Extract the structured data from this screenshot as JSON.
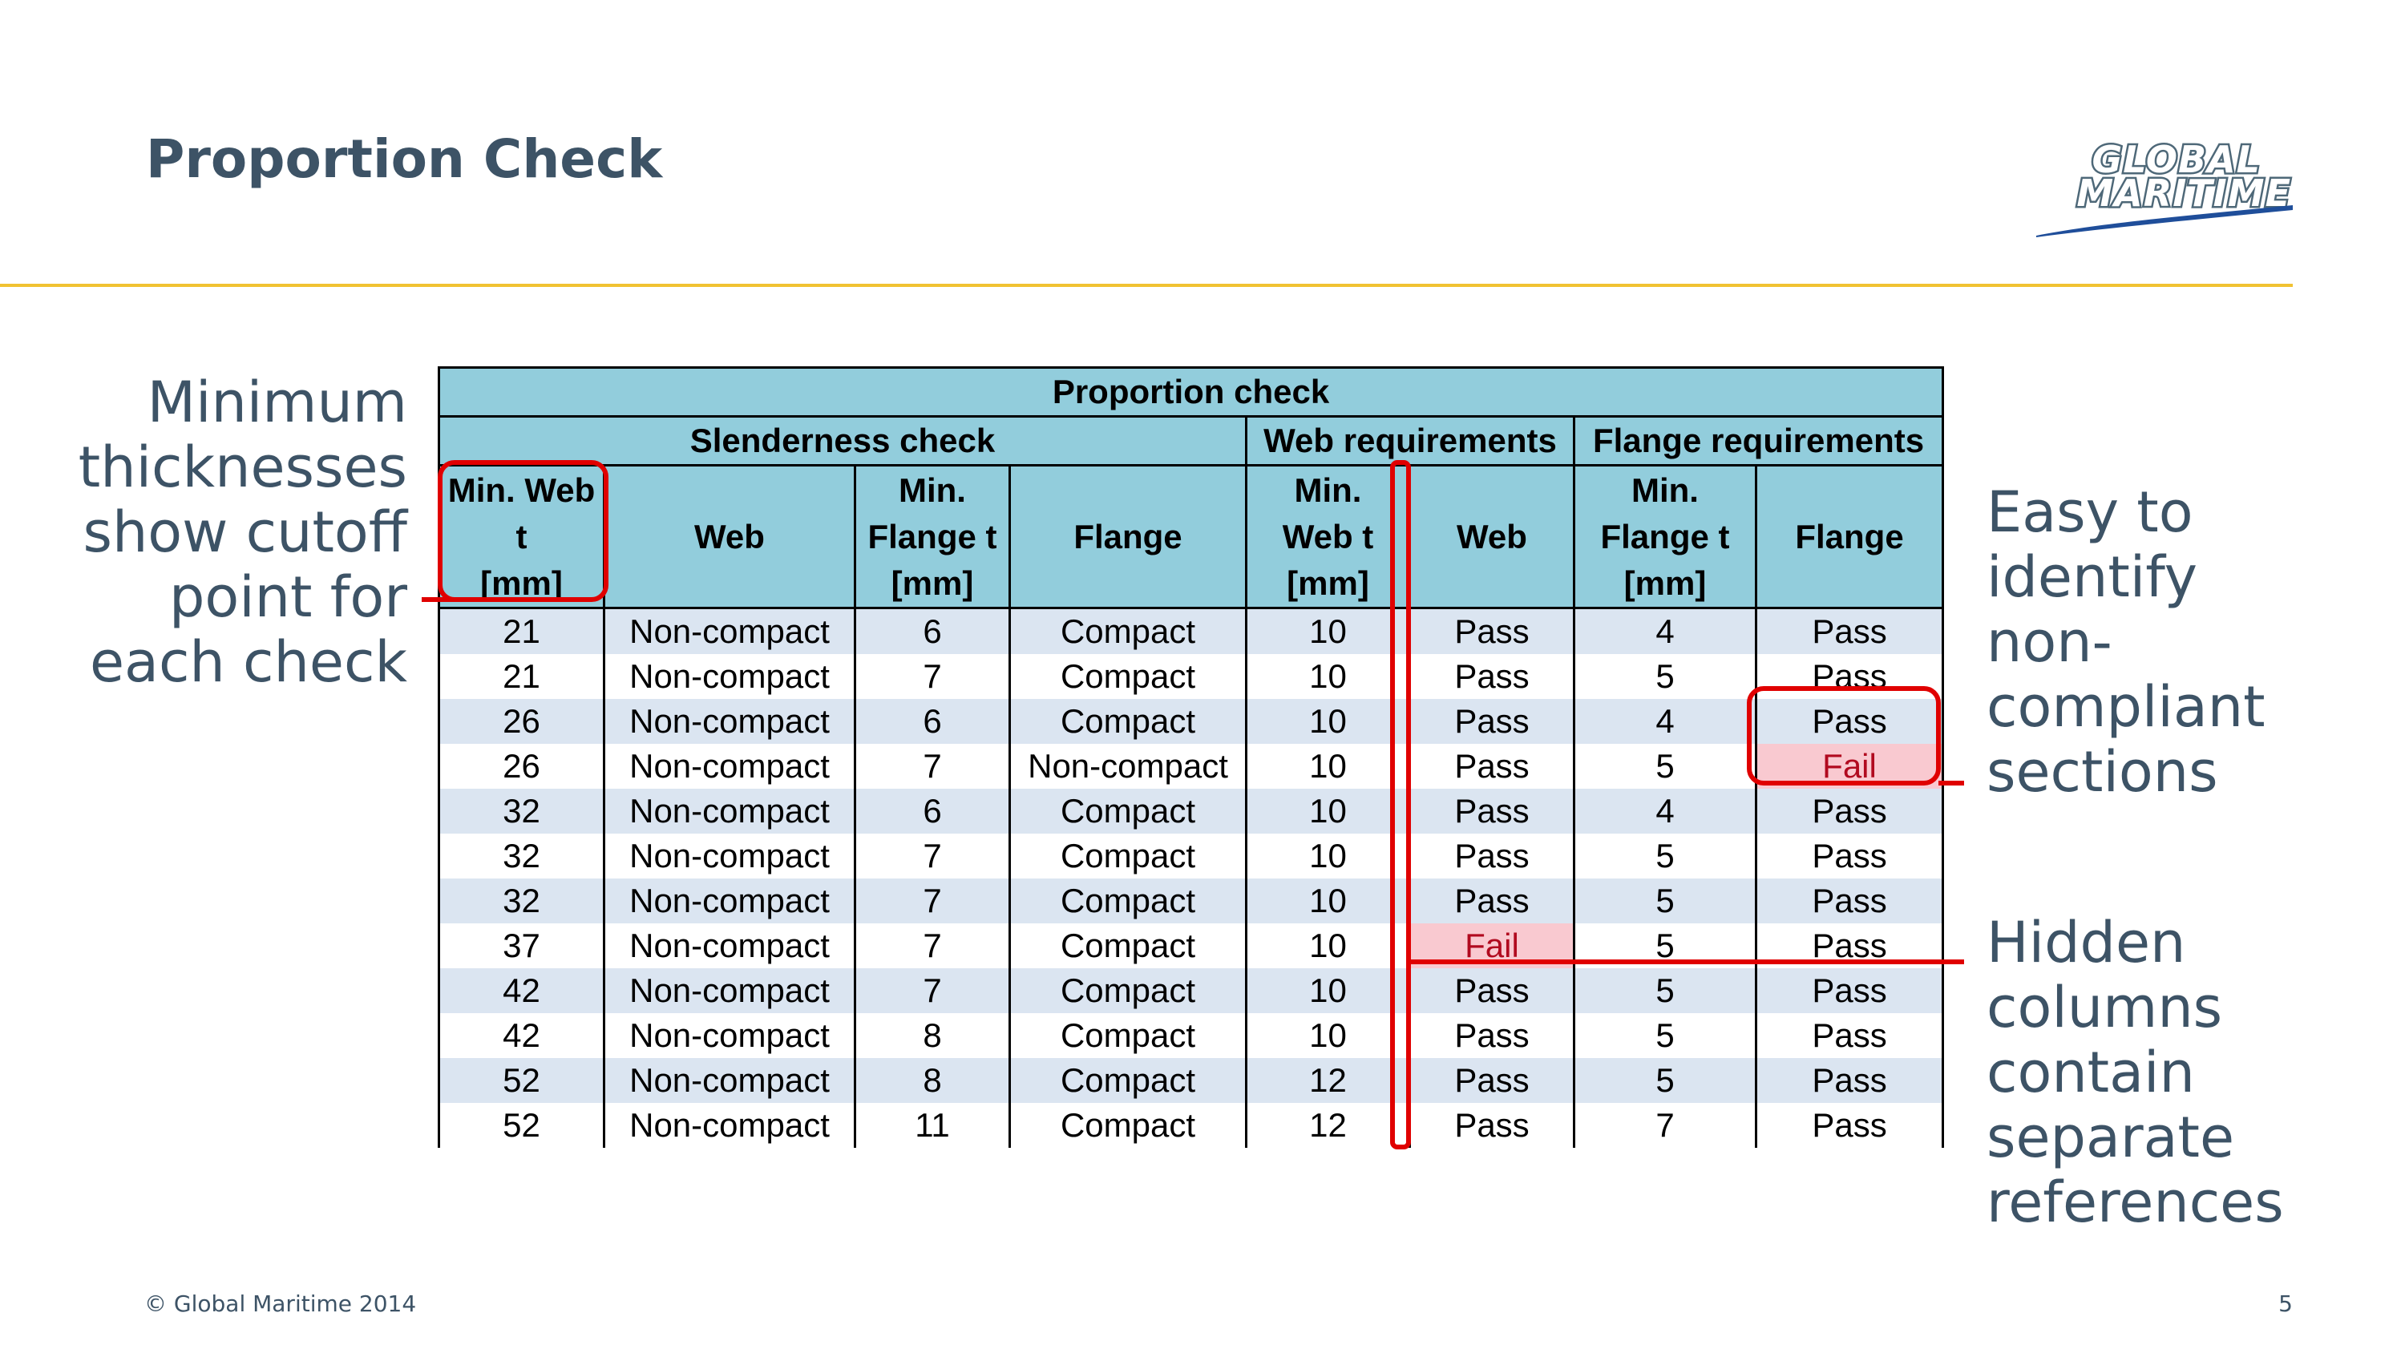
{
  "slide": {
    "title": "Proportion Check",
    "footer": "© Global Maritime 2014",
    "page_number": "5"
  },
  "logo": {
    "line1": "GLOBAL",
    "line2": "MARITIME"
  },
  "notes": {
    "left": [
      "Minimum",
      "thicknesses",
      "show cutoff",
      "point for",
      "each check"
    ],
    "right_top": [
      "Easy to",
      "identify",
      "non-",
      "compliant",
      "sections"
    ],
    "right_bottom": [
      "Hidden",
      "columns",
      "contain",
      "separate",
      "references"
    ]
  },
  "table": {
    "title": "Proportion check",
    "groups": [
      "Slenderness check",
      "Web requirements",
      "Flange requirements"
    ],
    "headers": [
      [
        "Min. Web",
        "t",
        "[mm]"
      ],
      [
        "Web"
      ],
      [
        "Min.",
        "Flange t",
        "[mm]"
      ],
      [
        "Flange"
      ],
      [
        "Min.",
        "Web t",
        "[mm]"
      ],
      [
        "Web"
      ],
      [
        "Min.",
        "Flange t",
        "[mm]"
      ],
      [
        "Flange"
      ]
    ],
    "rows": [
      [
        "21",
        "Non-compact",
        "6",
        "Compact",
        "10",
        "Pass",
        "4",
        "Pass"
      ],
      [
        "21",
        "Non-compact",
        "7",
        "Compact",
        "10",
        "Pass",
        "5",
        "Pass"
      ],
      [
        "26",
        "Non-compact",
        "6",
        "Compact",
        "10",
        "Pass",
        "4",
        "Pass"
      ],
      [
        "26",
        "Non-compact",
        "7",
        "Non-compact",
        "10",
        "Pass",
        "5",
        "Fail"
      ],
      [
        "32",
        "Non-compact",
        "6",
        "Compact",
        "10",
        "Pass",
        "4",
        "Pass"
      ],
      [
        "32",
        "Non-compact",
        "7",
        "Compact",
        "10",
        "Pass",
        "5",
        "Pass"
      ],
      [
        "32",
        "Non-compact",
        "7",
        "Compact",
        "10",
        "Pass",
        "5",
        "Pass"
      ],
      [
        "37",
        "Non-compact",
        "7",
        "Compact",
        "10",
        "Fail",
        "5",
        "Pass"
      ],
      [
        "42",
        "Non-compact",
        "7",
        "Compact",
        "10",
        "Pass",
        "5",
        "Pass"
      ],
      [
        "42",
        "Non-compact",
        "8",
        "Compact",
        "10",
        "Pass",
        "5",
        "Pass"
      ],
      [
        "52",
        "Non-compact",
        "8",
        "Compact",
        "12",
        "Pass",
        "5",
        "Pass"
      ],
      [
        "52",
        "Non-compact",
        "11",
        "Compact",
        "12",
        "Pass",
        "7",
        "Pass"
      ]
    ]
  },
  "colors": {
    "header_fill": "#92cddc",
    "row_band": "#dbe5f1",
    "fail_fill": "#f9c9d0",
    "fail_text": "#b10a1f",
    "annotation": "#e00000",
    "title_text": "#3d5366",
    "rule": "#f1c232"
  }
}
